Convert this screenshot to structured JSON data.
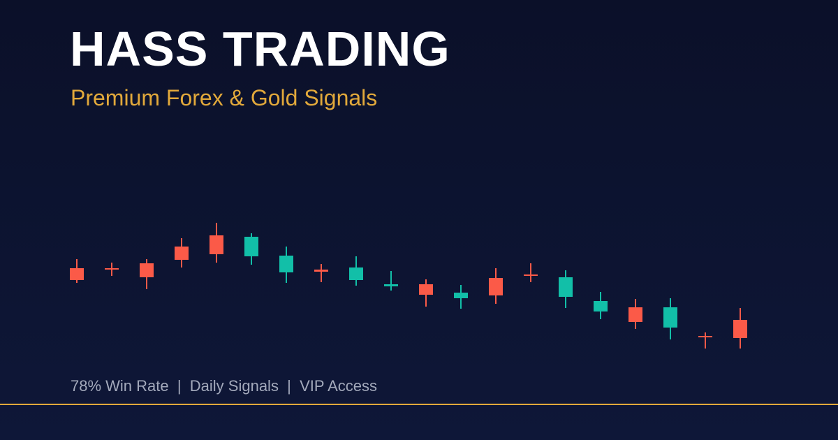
{
  "header": {
    "title": "HASS TRADING",
    "subtitle": "Premium Forex & Gold Signals"
  },
  "chart_data": {
    "type": "candlestick",
    "open": [
      246,
      246,
      253,
      277,
      293,
      263,
      240,
      244,
      229,
      220,
      223,
      203,
      232,
      237,
      205,
      184,
      190,
      161,
      149,
      172
    ],
    "high": [
      259,
      254,
      259,
      289,
      311,
      296,
      277,
      252,
      263,
      242,
      230,
      222,
      246,
      253,
      243,
      212,
      202,
      203,
      154,
      189
    ],
    "low": [
      225,
      235,
      216,
      247,
      254,
      251,
      225,
      226,
      221,
      214,
      191,
      188,
      195,
      226,
      189,
      173,
      159,
      144,
      131,
      131
    ],
    "close": [
      229,
      244,
      233,
      258,
      266,
      291,
      264,
      241,
      247,
      223,
      208,
      211,
      207,
      235,
      233,
      199,
      169,
      190,
      147,
      146
    ],
    "up_color": "#12bfa8",
    "down_color": "#fb5a48",
    "ylim": [
      0,
      630
    ]
  },
  "footer": {
    "text": "78% Win Rate  |  Daily Signals  |  VIP Access"
  }
}
